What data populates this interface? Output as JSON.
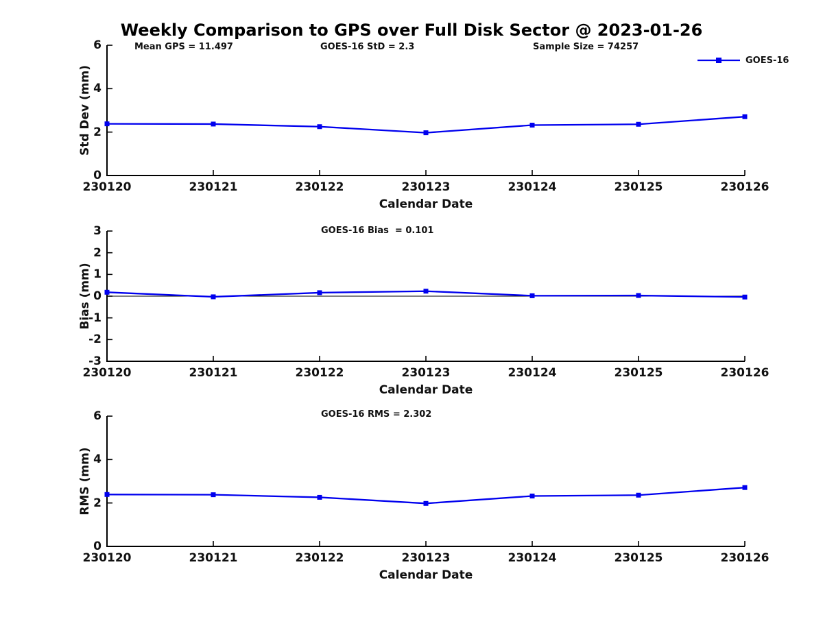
{
  "title": "Weekly Comparison to GPS over Full Disk Sector @ 2023-01-26",
  "annotations": {
    "mean_gps": "Mean GPS = 11.497",
    "goes_std": "GOES-16 StD = 2.3",
    "sample_size": "Sample Size = 74257"
  },
  "legend": {
    "label": "GOES-16",
    "position": "top-right"
  },
  "colors": {
    "series": "#0000EE",
    "axis": "#000000",
    "text": "#111111",
    "background": "#ffffff"
  },
  "chart_data": [
    {
      "type": "line",
      "title": "",
      "ylabel": "Std Dev (mm)",
      "xlabel": "Calendar Date",
      "categories": [
        "230120",
        "230121",
        "230122",
        "230123",
        "230124",
        "230125",
        "230126"
      ],
      "series": [
        {
          "name": "GOES-16",
          "values": [
            2.38,
            2.37,
            2.25,
            1.97,
            2.32,
            2.36,
            2.71
          ]
        }
      ],
      "ylim": [
        0,
        6
      ],
      "yticks": [
        0,
        2,
        4,
        6
      ],
      "zero_line": false,
      "grid": false,
      "marker": "square"
    },
    {
      "type": "line",
      "title": "GOES-16 Bias  = 0.101",
      "ylabel": "Bias (mm)",
      "xlabel": "Calendar Date",
      "categories": [
        "230120",
        "230121",
        "230122",
        "230123",
        "230124",
        "230125",
        "230126"
      ],
      "series": [
        {
          "name": "GOES-16",
          "values": [
            0.18,
            -0.03,
            0.16,
            0.23,
            0.02,
            0.03,
            -0.04
          ]
        }
      ],
      "ylim": [
        -3,
        3
      ],
      "yticks": [
        3,
        2,
        1,
        0,
        -1,
        -2,
        -3
      ],
      "zero_line": true,
      "grid": false,
      "marker": "square"
    },
    {
      "type": "line",
      "title": "GOES-16 RMS = 2.302",
      "ylabel": "RMS (mm)",
      "xlabel": "Calendar Date",
      "categories": [
        "230120",
        "230121",
        "230122",
        "230123",
        "230124",
        "230125",
        "230126"
      ],
      "series": [
        {
          "name": "GOES-16",
          "values": [
            2.39,
            2.38,
            2.26,
            1.98,
            2.32,
            2.36,
            2.71
          ]
        }
      ],
      "ylim": [
        0,
        6
      ],
      "yticks": [
        0,
        2,
        4,
        6
      ],
      "zero_line": false,
      "grid": false,
      "marker": "square"
    }
  ]
}
